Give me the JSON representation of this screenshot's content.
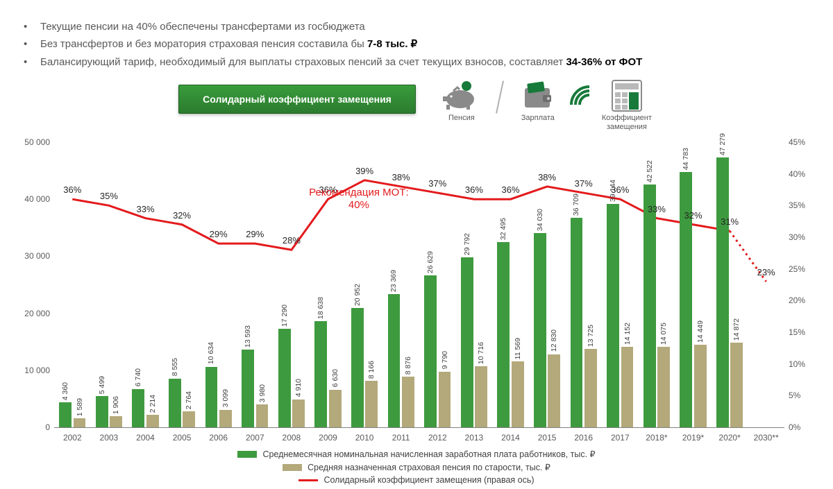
{
  "bullets": [
    {
      "pre": "Текущие пенсии на 40% обеспечены трансфертами из госбюджета",
      "bold": ""
    },
    {
      "pre": "Без трансфертов и без моратория страховая пенсия составила бы ",
      "bold": "7-8 тыс. ₽"
    },
    {
      "pre": "Балансирующий тариф, необходимый для выплаты страховых пенсий за счет текущих взносов, составляет ",
      "bold": "34-36% от ФОТ"
    }
  ],
  "banner": {
    "label": "Солидарный коэффициент замещения"
  },
  "icon_labels": {
    "pension": "Пенсия",
    "salary": "Зарплата",
    "coef": "Коэффициент замещения"
  },
  "colors": {
    "wage_bar": "#3e9a3e",
    "pension_bar": "#b3a97b",
    "line": "#e31a1c",
    "grid": "#808080",
    "text": "#595959"
  },
  "chart": {
    "type": "bar+line",
    "left_axis": {
      "min": 0,
      "max": 50000,
      "step": 10000,
      "label_format": "space_thousands"
    },
    "right_axis": {
      "min": 0,
      "max": 45,
      "step": 5,
      "suffix": "%"
    },
    "bar_width_ratio": 0.34,
    "bar_gap_ratio": 0.05,
    "years": [
      "2002",
      "2003",
      "2004",
      "2005",
      "2006",
      "2007",
      "2008",
      "2009",
      "2010",
      "2011",
      "2012",
      "2013",
      "2014",
      "2015",
      "2016",
      "2017",
      "2018*",
      "2019*",
      "2020*",
      "2030**"
    ],
    "wage": [
      4360,
      5499,
      6740,
      8555,
      10634,
      13593,
      17290,
      18638,
      20952,
      23369,
      26629,
      29792,
      32495,
      34030,
      36709,
      39144,
      42522,
      44783,
      47279,
      null
    ],
    "pension": [
      1589,
      1906,
      2214,
      2764,
      3099,
      3980,
      4910,
      6630,
      8166,
      8876,
      9790,
      10716,
      11569,
      12830,
      13725,
      14152,
      14075,
      14449,
      14872,
      null
    ],
    "wage_labels": [
      "4 360",
      "5 499",
      "6 740",
      "8 555",
      "10 634",
      "13 593",
      "17 290",
      "18 638",
      "20 952",
      "23 369",
      "26 629",
      "29 792",
      "32 495",
      "34 030",
      "36 709",
      "39 144",
      "42 522",
      "44 783",
      "47 279",
      ""
    ],
    "pension_labels": [
      "1 589",
      "1 906",
      "2 214",
      "2 764",
      "3 099",
      "3 980",
      "4 910",
      "6 630",
      "8 166",
      "8 876",
      "9 790",
      "10 716",
      "11 569",
      "12 830",
      "13 725",
      "14 152",
      "14 075",
      "14 449",
      "14 872",
      ""
    ],
    "ratio_pct": [
      36,
      35,
      33,
      32,
      29,
      29,
      28,
      36,
      39,
      38,
      37,
      36,
      36,
      38,
      37,
      36,
      33,
      32,
      31,
      23
    ],
    "ratio_labels": [
      "36%",
      "35%",
      "33%",
      "32%",
      "29%",
      "29%",
      "28%",
      "36%",
      "39%",
      "38%",
      "37%",
      "36%",
      "36%",
      "38%",
      "37%",
      "36%",
      "33%",
      "32%",
      "31%",
      "23%"
    ],
    "last_solid_index": 18,
    "mot_text_line1": "Рекомендация МОТ:",
    "mot_text_line2": "40%",
    "mot_anchor_index": 8
  },
  "legend": {
    "wage": "Среднемесячная номинальная начисленная заработная плата работников, тыс. ₽",
    "pension": "Средняя назначенная страховая пенсия по старости, тыс. ₽",
    "ratio": "Солидарный коэффициент замещения (правая ось)"
  }
}
